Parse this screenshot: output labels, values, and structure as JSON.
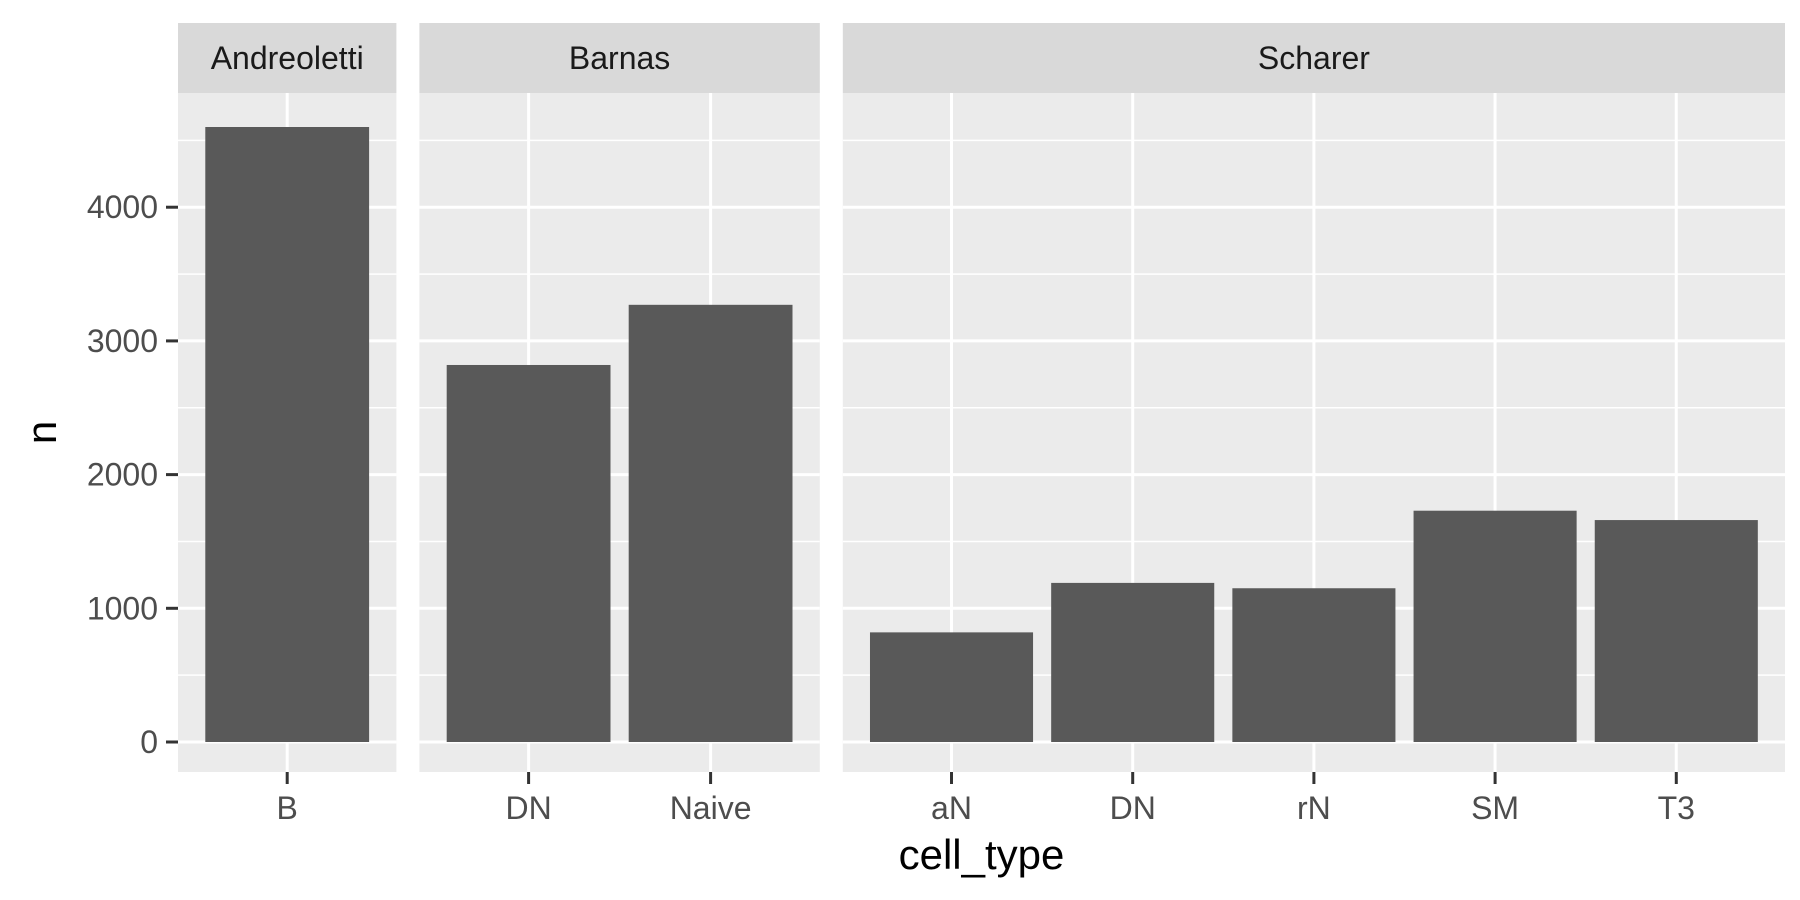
{
  "chart_data": {
    "type": "bar",
    "facet_by": "study",
    "xlabel": "cell_type",
    "ylabel": "n",
    "ylim": [
      0,
      4600
    ],
    "yticks": [
      0,
      1000,
      2000,
      3000,
      4000
    ],
    "grid": true,
    "facets": [
      {
        "name": "Andreoletti",
        "categories": [
          "B"
        ],
        "values": [
          4600
        ]
      },
      {
        "name": "Barnas",
        "categories": [
          "DN",
          "Naive"
        ],
        "values": [
          2820,
          3270
        ]
      },
      {
        "name": "Scharer",
        "categories": [
          "aN",
          "DN",
          "rN",
          "SM",
          "T3"
        ],
        "values": [
          820,
          1190,
          1150,
          1730,
          1660
        ]
      }
    ]
  },
  "colors": {
    "bar": "#595959",
    "panel": "#ebebeb",
    "strip": "#d9d9d9",
    "grid": "#ffffff",
    "tick": "#333333"
  }
}
